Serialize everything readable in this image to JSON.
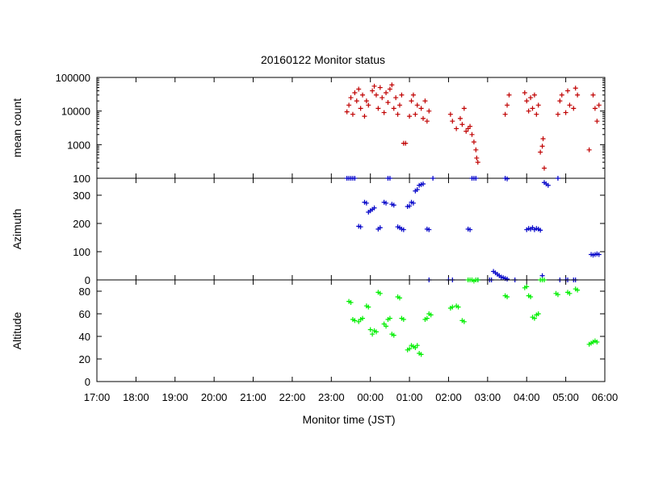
{
  "chart_data": {
    "title": "20160122 Monitor status",
    "xlabel": "Monitor time (JST)",
    "x_ticks": [
      "17:00",
      "18:00",
      "19:00",
      "20:00",
      "21:00",
      "22:00",
      "23:00",
      "00:00",
      "01:00",
      "02:00",
      "03:00",
      "04:00",
      "05:00",
      "06:00"
    ],
    "xlim_hours": [
      17,
      30
    ],
    "panels": [
      {
        "type": "scatter",
        "ylabel": "mean count",
        "scale": "log",
        "ylim": [
          100,
          100000
        ],
        "y_ticks": [
          "100",
          "1000",
          "10000",
          "100000"
        ],
        "y_tick_values": [
          100,
          1000,
          10000,
          100000
        ],
        "color": "#c00000",
        "points": [
          [
            23.4,
            9500
          ],
          [
            23.45,
            15000
          ],
          [
            23.5,
            25000
          ],
          [
            23.55,
            8000
          ],
          [
            23.6,
            35000
          ],
          [
            23.65,
            20000
          ],
          [
            23.7,
            45000
          ],
          [
            23.75,
            12000
          ],
          [
            23.8,
            30000
          ],
          [
            23.85,
            7000
          ],
          [
            23.9,
            20000
          ],
          [
            23.95,
            15000
          ],
          [
            24.05,
            40000
          ],
          [
            24.1,
            55000
          ],
          [
            24.15,
            30000
          ],
          [
            24.2,
            12000
          ],
          [
            24.25,
            50000
          ],
          [
            24.3,
            25000
          ],
          [
            24.35,
            9000
          ],
          [
            24.4,
            35000
          ],
          [
            24.45,
            18000
          ],
          [
            24.5,
            45000
          ],
          [
            24.55,
            60000
          ],
          [
            24.6,
            12000
          ],
          [
            24.65,
            25000
          ],
          [
            24.7,
            8000
          ],
          [
            24.75,
            15000
          ],
          [
            24.8,
            30000
          ],
          [
            24.85,
            1100
          ],
          [
            24.9,
            1100
          ],
          [
            25.0,
            7000
          ],
          [
            25.05,
            20000
          ],
          [
            25.1,
            30000
          ],
          [
            25.15,
            8000
          ],
          [
            25.2,
            15000
          ],
          [
            25.3,
            12000
          ],
          [
            25.35,
            6000
          ],
          [
            25.4,
            20000
          ],
          [
            25.45,
            5000
          ],
          [
            25.5,
            10000
          ],
          [
            26.05,
            8000
          ],
          [
            26.1,
            5000
          ],
          [
            26.2,
            3000
          ],
          [
            26.3,
            6000
          ],
          [
            26.35,
            4000
          ],
          [
            26.4,
            12000
          ],
          [
            26.45,
            2500
          ],
          [
            26.5,
            3000
          ],
          [
            26.55,
            3500
          ],
          [
            26.6,
            2000
          ],
          [
            26.65,
            1200
          ],
          [
            26.7,
            700
          ],
          [
            26.72,
            400
          ],
          [
            26.75,
            300
          ],
          [
            27.45,
            8000
          ],
          [
            27.5,
            15000
          ],
          [
            27.55,
            30000
          ],
          [
            27.95,
            35000
          ],
          [
            28.0,
            20000
          ],
          [
            28.05,
            10000
          ],
          [
            28.1,
            25000
          ],
          [
            28.15,
            12000
          ],
          [
            28.2,
            30000
          ],
          [
            28.25,
            8000
          ],
          [
            28.3,
            15000
          ],
          [
            28.35,
            600
          ],
          [
            28.4,
            900
          ],
          [
            28.42,
            1500
          ],
          [
            28.45,
            200
          ],
          [
            28.8,
            8000
          ],
          [
            28.85,
            20000
          ],
          [
            28.9,
            30000
          ],
          [
            29.0,
            9000
          ],
          [
            29.05,
            40000
          ],
          [
            29.1,
            15000
          ],
          [
            29.2,
            12000
          ],
          [
            29.25,
            48000
          ],
          [
            29.3,
            30000
          ],
          [
            29.6,
            700
          ],
          [
            29.7,
            30000
          ],
          [
            29.75,
            12000
          ],
          [
            29.8,
            5000
          ],
          [
            29.85,
            15000
          ]
        ]
      },
      {
        "type": "scatter",
        "ylabel": "Azimuth",
        "scale": "linear",
        "ylim": [
          0,
          360
        ],
        "y_ticks": [
          "0",
          "100",
          "200",
          "300"
        ],
        "y_tick_values": [
          0,
          100,
          200,
          300
        ],
        "color": "#0000c8",
        "points": [
          [
            23.4,
            360
          ],
          [
            23.45,
            360
          ],
          [
            23.5,
            360
          ],
          [
            23.55,
            360
          ],
          [
            23.6,
            360
          ],
          [
            23.7,
            190
          ],
          [
            23.75,
            188
          ],
          [
            23.85,
            275
          ],
          [
            23.9,
            272
          ],
          [
            23.95,
            240
          ],
          [
            24.0,
            245
          ],
          [
            24.05,
            250
          ],
          [
            24.1,
            255
          ],
          [
            24.2,
            180
          ],
          [
            24.25,
            185
          ],
          [
            24.35,
            275
          ],
          [
            24.4,
            272
          ],
          [
            24.45,
            360
          ],
          [
            24.5,
            360
          ],
          [
            24.55,
            268
          ],
          [
            24.6,
            265
          ],
          [
            24.7,
            188
          ],
          [
            24.75,
            185
          ],
          [
            24.8,
            180
          ],
          [
            24.85,
            178
          ],
          [
            24.95,
            260
          ],
          [
            25.0,
            262
          ],
          [
            25.05,
            275
          ],
          [
            25.1,
            272
          ],
          [
            25.15,
            315
          ],
          [
            25.2,
            320
          ],
          [
            25.25,
            335
          ],
          [
            25.3,
            338
          ],
          [
            25.35,
            340
          ],
          [
            25.45,
            180
          ],
          [
            25.5,
            178
          ],
          [
            25.6,
            360
          ],
          [
            25.5,
            0
          ],
          [
            26.0,
            0
          ],
          [
            26.1,
            0
          ],
          [
            26.5,
            180
          ],
          [
            26.55,
            178
          ],
          [
            26.6,
            360
          ],
          [
            26.65,
            362
          ],
          [
            26.7,
            360
          ],
          [
            26.75,
            0
          ],
          [
            27.05,
            0
          ],
          [
            27.1,
            0
          ],
          [
            27.15,
            30
          ],
          [
            27.2,
            25
          ],
          [
            27.25,
            20
          ],
          [
            27.3,
            15
          ],
          [
            27.35,
            10
          ],
          [
            27.4,
            8
          ],
          [
            27.45,
            5
          ],
          [
            27.5,
            3
          ],
          [
            27.45,
            360
          ],
          [
            27.5,
            358
          ],
          [
            27.7,
            0
          ],
          [
            28.0,
            178
          ],
          [
            28.05,
            182
          ],
          [
            28.1,
            180
          ],
          [
            28.15,
            185
          ],
          [
            28.2,
            178
          ],
          [
            28.25,
            182
          ],
          [
            28.3,
            180
          ],
          [
            28.35,
            176
          ],
          [
            28.4,
            15
          ],
          [
            28.45,
            345
          ],
          [
            28.5,
            340
          ],
          [
            28.55,
            335
          ],
          [
            28.8,
            360
          ],
          [
            28.85,
            0
          ],
          [
            29.0,
            0
          ],
          [
            29.05,
            0
          ],
          [
            29.2,
            0
          ],
          [
            29.25,
            0
          ],
          [
            29.65,
            90
          ],
          [
            29.7,
            88
          ],
          [
            29.75,
            90
          ],
          [
            29.8,
            92
          ],
          [
            29.85,
            90
          ]
        ]
      },
      {
        "type": "scatter",
        "ylabel": "Altitude",
        "scale": "linear",
        "ylim": [
          0,
          90
        ],
        "y_ticks": [
          "0",
          "20",
          "40",
          "60",
          "80"
        ],
        "y_tick_values": [
          0,
          20,
          40,
          60,
          80
        ],
        "color": "#00ee00",
        "points": [
          [
            23.45,
            71
          ],
          [
            23.5,
            70
          ],
          [
            23.55,
            55
          ],
          [
            23.6,
            54
          ],
          [
            23.7,
            53
          ],
          [
            23.75,
            55
          ],
          [
            23.8,
            56
          ],
          [
            23.9,
            67
          ],
          [
            23.95,
            66
          ],
          [
            24.0,
            46
          ],
          [
            24.05,
            42
          ],
          [
            24.1,
            45
          ],
          [
            24.15,
            44
          ],
          [
            24.2,
            79
          ],
          [
            24.25,
            78
          ],
          [
            24.35,
            51
          ],
          [
            24.4,
            49
          ],
          [
            24.45,
            55
          ],
          [
            24.5,
            56
          ],
          [
            24.55,
            42
          ],
          [
            24.6,
            41
          ],
          [
            24.7,
            75
          ],
          [
            24.75,
            74
          ],
          [
            24.8,
            56
          ],
          [
            24.85,
            55
          ],
          [
            24.95,
            28
          ],
          [
            25.0,
            29
          ],
          [
            25.05,
            32
          ],
          [
            25.1,
            31
          ],
          [
            25.15,
            30
          ],
          [
            25.2,
            32
          ],
          [
            25.25,
            25
          ],
          [
            25.3,
            24
          ],
          [
            25.4,
            55
          ],
          [
            25.45,
            56
          ],
          [
            25.5,
            60
          ],
          [
            25.55,
            59
          ],
          [
            26.05,
            65
          ],
          [
            26.1,
            66
          ],
          [
            26.2,
            67
          ],
          [
            26.25,
            66
          ],
          [
            26.35,
            54
          ],
          [
            26.4,
            53
          ],
          [
            26.5,
            92
          ],
          [
            26.55,
            91
          ],
          [
            26.6,
            90
          ],
          [
            26.65,
            89
          ],
          [
            26.7,
            90
          ],
          [
            26.75,
            91
          ],
          [
            27.45,
            76
          ],
          [
            27.5,
            75
          ],
          [
            27.95,
            83
          ],
          [
            28.0,
            84
          ],
          [
            28.05,
            76
          ],
          [
            28.1,
            75
          ],
          [
            28.15,
            57
          ],
          [
            28.2,
            56
          ],
          [
            28.25,
            59
          ],
          [
            28.3,
            60
          ],
          [
            28.35,
            90
          ],
          [
            28.4,
            91
          ],
          [
            28.45,
            90
          ],
          [
            28.75,
            78
          ],
          [
            28.8,
            77
          ],
          [
            29.05,
            79
          ],
          [
            29.1,
            78
          ],
          [
            29.25,
            82
          ],
          [
            29.3,
            81
          ],
          [
            29.6,
            33
          ],
          [
            29.65,
            34
          ],
          [
            29.7,
            35
          ],
          [
            29.75,
            36
          ],
          [
            29.8,
            35
          ]
        ]
      }
    ]
  }
}
